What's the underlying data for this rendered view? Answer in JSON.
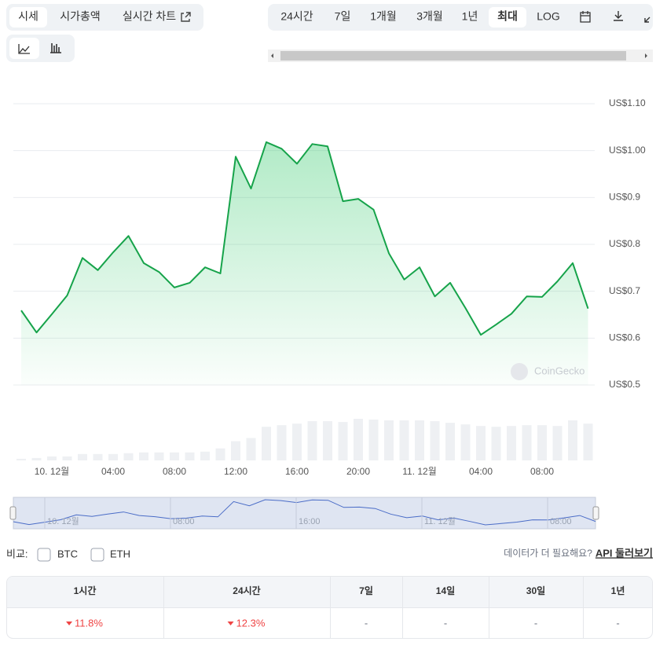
{
  "tabs": [
    "시세",
    "시가총액",
    "실시간 차트"
  ],
  "ranges": [
    "24시간",
    "7일",
    "1개월",
    "3개월",
    "1년",
    "최대",
    "LOG"
  ],
  "compare": {
    "label": "비교:",
    "options": [
      "BTC",
      "ETH"
    ]
  },
  "api": {
    "prompt": "데이터가 더 필요해요?",
    "link": "API 둘러보기"
  },
  "table": {
    "header": [
      "1시간",
      "24시간",
      "7일",
      "14일",
      "30일",
      "1년"
    ],
    "rows": [
      [
        "11.8%",
        "12.3%",
        "-",
        "-",
        "-",
        "-"
      ]
    ]
  },
  "chart_data": {
    "type": "line",
    "categories": [
      null,
      null,
      "10. 12월",
      null,
      null,
      null,
      "04:00",
      null,
      null,
      null,
      "08:00",
      null,
      null,
      null,
      "12:00",
      null,
      null,
      null,
      "16:00",
      null,
      null,
      null,
      "20:00",
      null,
      null,
      null,
      "11. 12월",
      null,
      null,
      null,
      "04:00",
      null,
      null,
      null,
      "08:00",
      null,
      null,
      null
    ],
    "values": [
      0.659,
      0.612,
      0.651,
      0.691,
      0.771,
      0.745,
      0.783,
      0.818,
      0.76,
      0.741,
      0.708,
      0.718,
      0.751,
      0.738,
      0.987,
      0.919,
      1.018,
      1.004,
      0.972,
      1.014,
      1.009,
      0.892,
      0.897,
      0.874,
      0.781,
      0.725,
      0.751,
      0.689,
      0.718,
      0.664,
      0.607,
      0.629,
      0.652,
      0.689,
      0.688,
      0.721,
      0.76,
      0.663
    ],
    "volume": [
      2,
      3,
      5,
      5,
      8,
      8,
      8,
      9,
      10,
      10,
      10,
      10,
      11,
      15,
      24,
      28,
      42,
      44,
      46,
      49,
      49,
      48,
      52,
      51,
      50,
      50,
      50,
      49,
      47,
      45,
      43,
      42,
      43,
      44,
      44,
      43,
      50,
      46
    ],
    "color": "#16a34a",
    "ylim": [
      0.5,
      1.1
    ],
    "yticks": [
      {
        "value": 0.5,
        "label": "US$0.5"
      },
      {
        "value": 0.6,
        "label": "US$0.6"
      },
      {
        "value": 0.7,
        "label": "US$0.7"
      },
      {
        "value": 0.8,
        "label": "US$0.8"
      },
      {
        "value": 0.9,
        "label": "US$0.9"
      },
      {
        "value": 1.0,
        "label": "US$1.00"
      },
      {
        "value": 1.1,
        "label": "US$1.10"
      }
    ],
    "grid": true,
    "watermark": "CoinGecko",
    "navigator_labels": [
      "10. 12월",
      "08:00",
      "16:00",
      "11. 12월",
      "08:00"
    ]
  }
}
